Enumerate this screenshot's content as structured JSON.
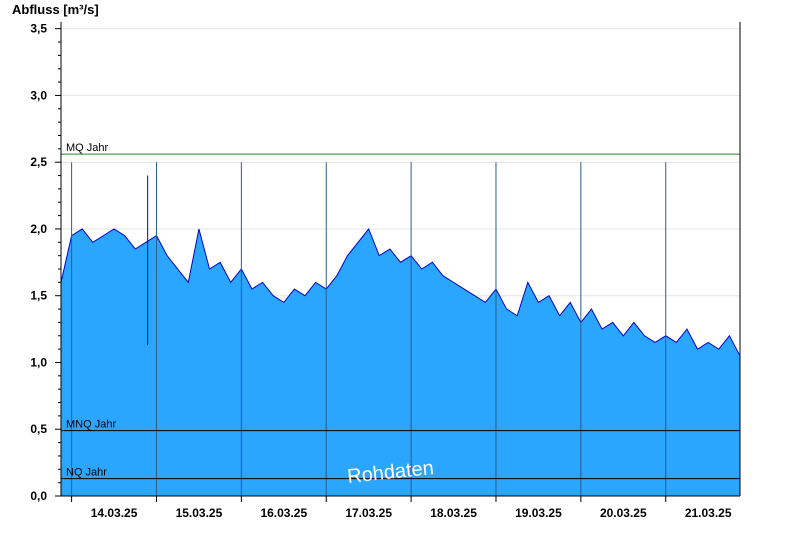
{
  "chart_data": {
    "type": "area",
    "ylabel": "Abfluss [m³/s]",
    "ylim": [
      0,
      3.55
    ],
    "yticks": [
      "0,0",
      "0,5",
      "1,0",
      "1,5",
      "2,0",
      "2,5",
      "3,0",
      "3,5"
    ],
    "ytick_values": [
      0,
      0.5,
      1.0,
      1.5,
      2.0,
      2.5,
      3.0,
      3.5
    ],
    "xlim": [
      "13.03.25 21:00",
      "21.03.25 21:00"
    ],
    "xtick_labels": [
      "14.03.25",
      "15.03.25",
      "16.03.25",
      "17.03.25",
      "18.03.25",
      "19.03.25",
      "20.03.25",
      "21.03.25"
    ],
    "grid": true,
    "colors": {
      "fill": "#2ba6ff",
      "line": "#0000cc",
      "mq_line": "#2e7d32",
      "ref_line": "#000000"
    },
    "reference_lines": [
      {
        "label": "MQ Jahr",
        "value": 2.56
      },
      {
        "label": "MNQ Jahr",
        "value": 0.49
      },
      {
        "label": "NQ Jahr",
        "value": 0.13
      }
    ],
    "watermark": "Rohdaten",
    "series": [
      {
        "x": [
          "13.03.25 21:00",
          "14.03.25 00:00",
          "14.03.25 03:00",
          "14.03.25 06:00",
          "14.03.25 09:00",
          "14.03.25 12:00",
          "14.03.25 15:00",
          "14.03.25 18:00",
          "14.03.25 21:00",
          "15.03.25 00:00",
          "15.03.25 03:00",
          "15.03.25 06:00",
          "15.03.25 09:00",
          "15.03.25 12:00",
          "15.03.25 15:00",
          "15.03.25 18:00",
          "15.03.25 21:00",
          "16.03.25 00:00",
          "16.03.25 03:00",
          "16.03.25 06:00",
          "16.03.25 09:00",
          "16.03.25 12:00",
          "16.03.25 15:00",
          "16.03.25 18:00",
          "16.03.25 21:00",
          "17.03.25 00:00",
          "17.03.25 03:00",
          "17.03.25 06:00",
          "17.03.25 09:00",
          "17.03.25 12:00",
          "17.03.25 15:00",
          "17.03.25 18:00",
          "17.03.25 21:00",
          "18.03.25 00:00",
          "18.03.25 03:00",
          "18.03.25 06:00",
          "18.03.25 09:00",
          "18.03.25 12:00",
          "18.03.25 15:00",
          "18.03.25 18:00",
          "18.03.25 21:00",
          "19.03.25 00:00",
          "19.03.25 03:00",
          "19.03.25 06:00",
          "19.03.25 09:00",
          "19.03.25 12:00",
          "19.03.25 15:00",
          "19.03.25 18:00",
          "19.03.25 21:00",
          "20.03.25 00:00",
          "20.03.25 03:00",
          "20.03.25 06:00",
          "20.03.25 09:00",
          "20.03.25 12:00",
          "20.03.25 15:00",
          "20.03.25 18:00",
          "20.03.25 21:00",
          "21.03.25 00:00",
          "21.03.25 03:00",
          "21.03.25 06:00",
          "21.03.25 09:00",
          "21.03.25 12:00",
          "21.03.25 15:00",
          "21.03.25 18:00",
          "21.03.25 21:00"
        ],
        "values": [
          1.6,
          1.95,
          2.0,
          1.9,
          1.95,
          2.0,
          1.95,
          1.85,
          1.9,
          1.95,
          1.8,
          1.7,
          1.6,
          2.0,
          1.7,
          1.75,
          1.6,
          1.7,
          1.55,
          1.6,
          1.5,
          1.45,
          1.55,
          1.5,
          1.6,
          1.55,
          1.65,
          1.8,
          1.9,
          2.0,
          1.8,
          1.85,
          1.75,
          1.8,
          1.7,
          1.75,
          1.65,
          1.6,
          1.55,
          1.5,
          1.45,
          1.55,
          1.4,
          1.35,
          1.6,
          1.45,
          1.5,
          1.35,
          1.45,
          1.3,
          1.4,
          1.25,
          1.3,
          1.2,
          1.3,
          1.2,
          1.15,
          1.2,
          1.15,
          1.25,
          1.1,
          1.15,
          1.1,
          1.2,
          1.05
        ]
      }
    ],
    "spike": {
      "x": "14.03.25 21:30",
      "max": 2.4,
      "min": 1.13
    }
  }
}
